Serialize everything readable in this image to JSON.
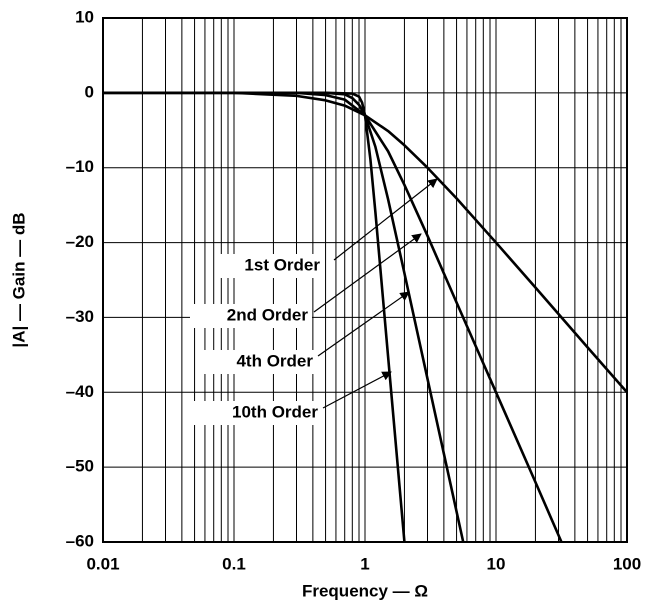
{
  "chart_data": {
    "type": "line",
    "x_label": "Frequency — Ω",
    "y_label": "|A| — Gain — dB",
    "log_x": true,
    "grid": true,
    "xlim": [
      0.01,
      100
    ],
    "xticks": [
      0.01,
      0.1,
      1,
      10,
      100
    ],
    "x_minor_grid": [
      0.02,
      0.03,
      0.04,
      0.05,
      0.06,
      0.07,
      0.08,
      0.09,
      0.2,
      0.3,
      0.4,
      0.5,
      0.6,
      0.7,
      0.8,
      0.9,
      2,
      3,
      4,
      5,
      6,
      7,
      8,
      9,
      20,
      30,
      40,
      50,
      60,
      70,
      80,
      90
    ],
    "ylim": [
      -60,
      10
    ],
    "yticks": [
      {
        "value": -60,
        "label": "–60"
      },
      {
        "value": -50,
        "label": "–50"
      },
      {
        "value": -40,
        "label": "–40"
      },
      {
        "value": -30,
        "label": "–30"
      },
      {
        "value": -20,
        "label": "–20"
      },
      {
        "value": -10,
        "label": "–10"
      },
      0,
      10
    ],
    "series": [
      {
        "name": "1st Order",
        "color": "#000000",
        "x": [
          0.01,
          0.1,
          0.3,
          0.5,
          0.7,
          1,
          1.5,
          2,
          3,
          5,
          10,
          20,
          50,
          100
        ],
        "values": [
          0,
          0,
          -0.4,
          -1,
          -1.7,
          -3,
          -5.1,
          -7,
          -10,
          -14.1,
          -20,
          -26,
          -34,
          -40
        ]
      },
      {
        "name": "2nd Order",
        "color": "#000000",
        "x": [
          0.01,
          0.1,
          0.3,
          0.5,
          0.7,
          1,
          1.5,
          2,
          3,
          5,
          10,
          20,
          31.6
        ],
        "values": [
          0,
          0,
          0,
          -0.3,
          -0.9,
          -3,
          -7.8,
          -12.3,
          -19.1,
          -28,
          -40,
          -52,
          -60
        ]
      },
      {
        "name": "4th Order",
        "color": "#000000",
        "x": [
          0.01,
          0.1,
          0.3,
          0.5,
          0.7,
          0.8,
          0.9,
          1,
          1.2,
          1.5,
          2,
          3,
          4,
          5.62
        ],
        "values": [
          0,
          0,
          0,
          0,
          -0.2,
          -0.7,
          -1.6,
          -3,
          -7.2,
          -14.2,
          -24.1,
          -38.2,
          -48.2,
          -60
        ]
      },
      {
        "name": "10th Order",
        "color": "#000000",
        "x": [
          0.01,
          0.1,
          0.5,
          0.8,
          0.9,
          0.95,
          1,
          1.1,
          1.2,
          1.5,
          2
        ],
        "values": [
          0,
          0,
          0,
          -0.1,
          -0.5,
          -1.3,
          -3,
          -8.9,
          -15.9,
          -35.2,
          -60
        ]
      }
    ]
  }
}
